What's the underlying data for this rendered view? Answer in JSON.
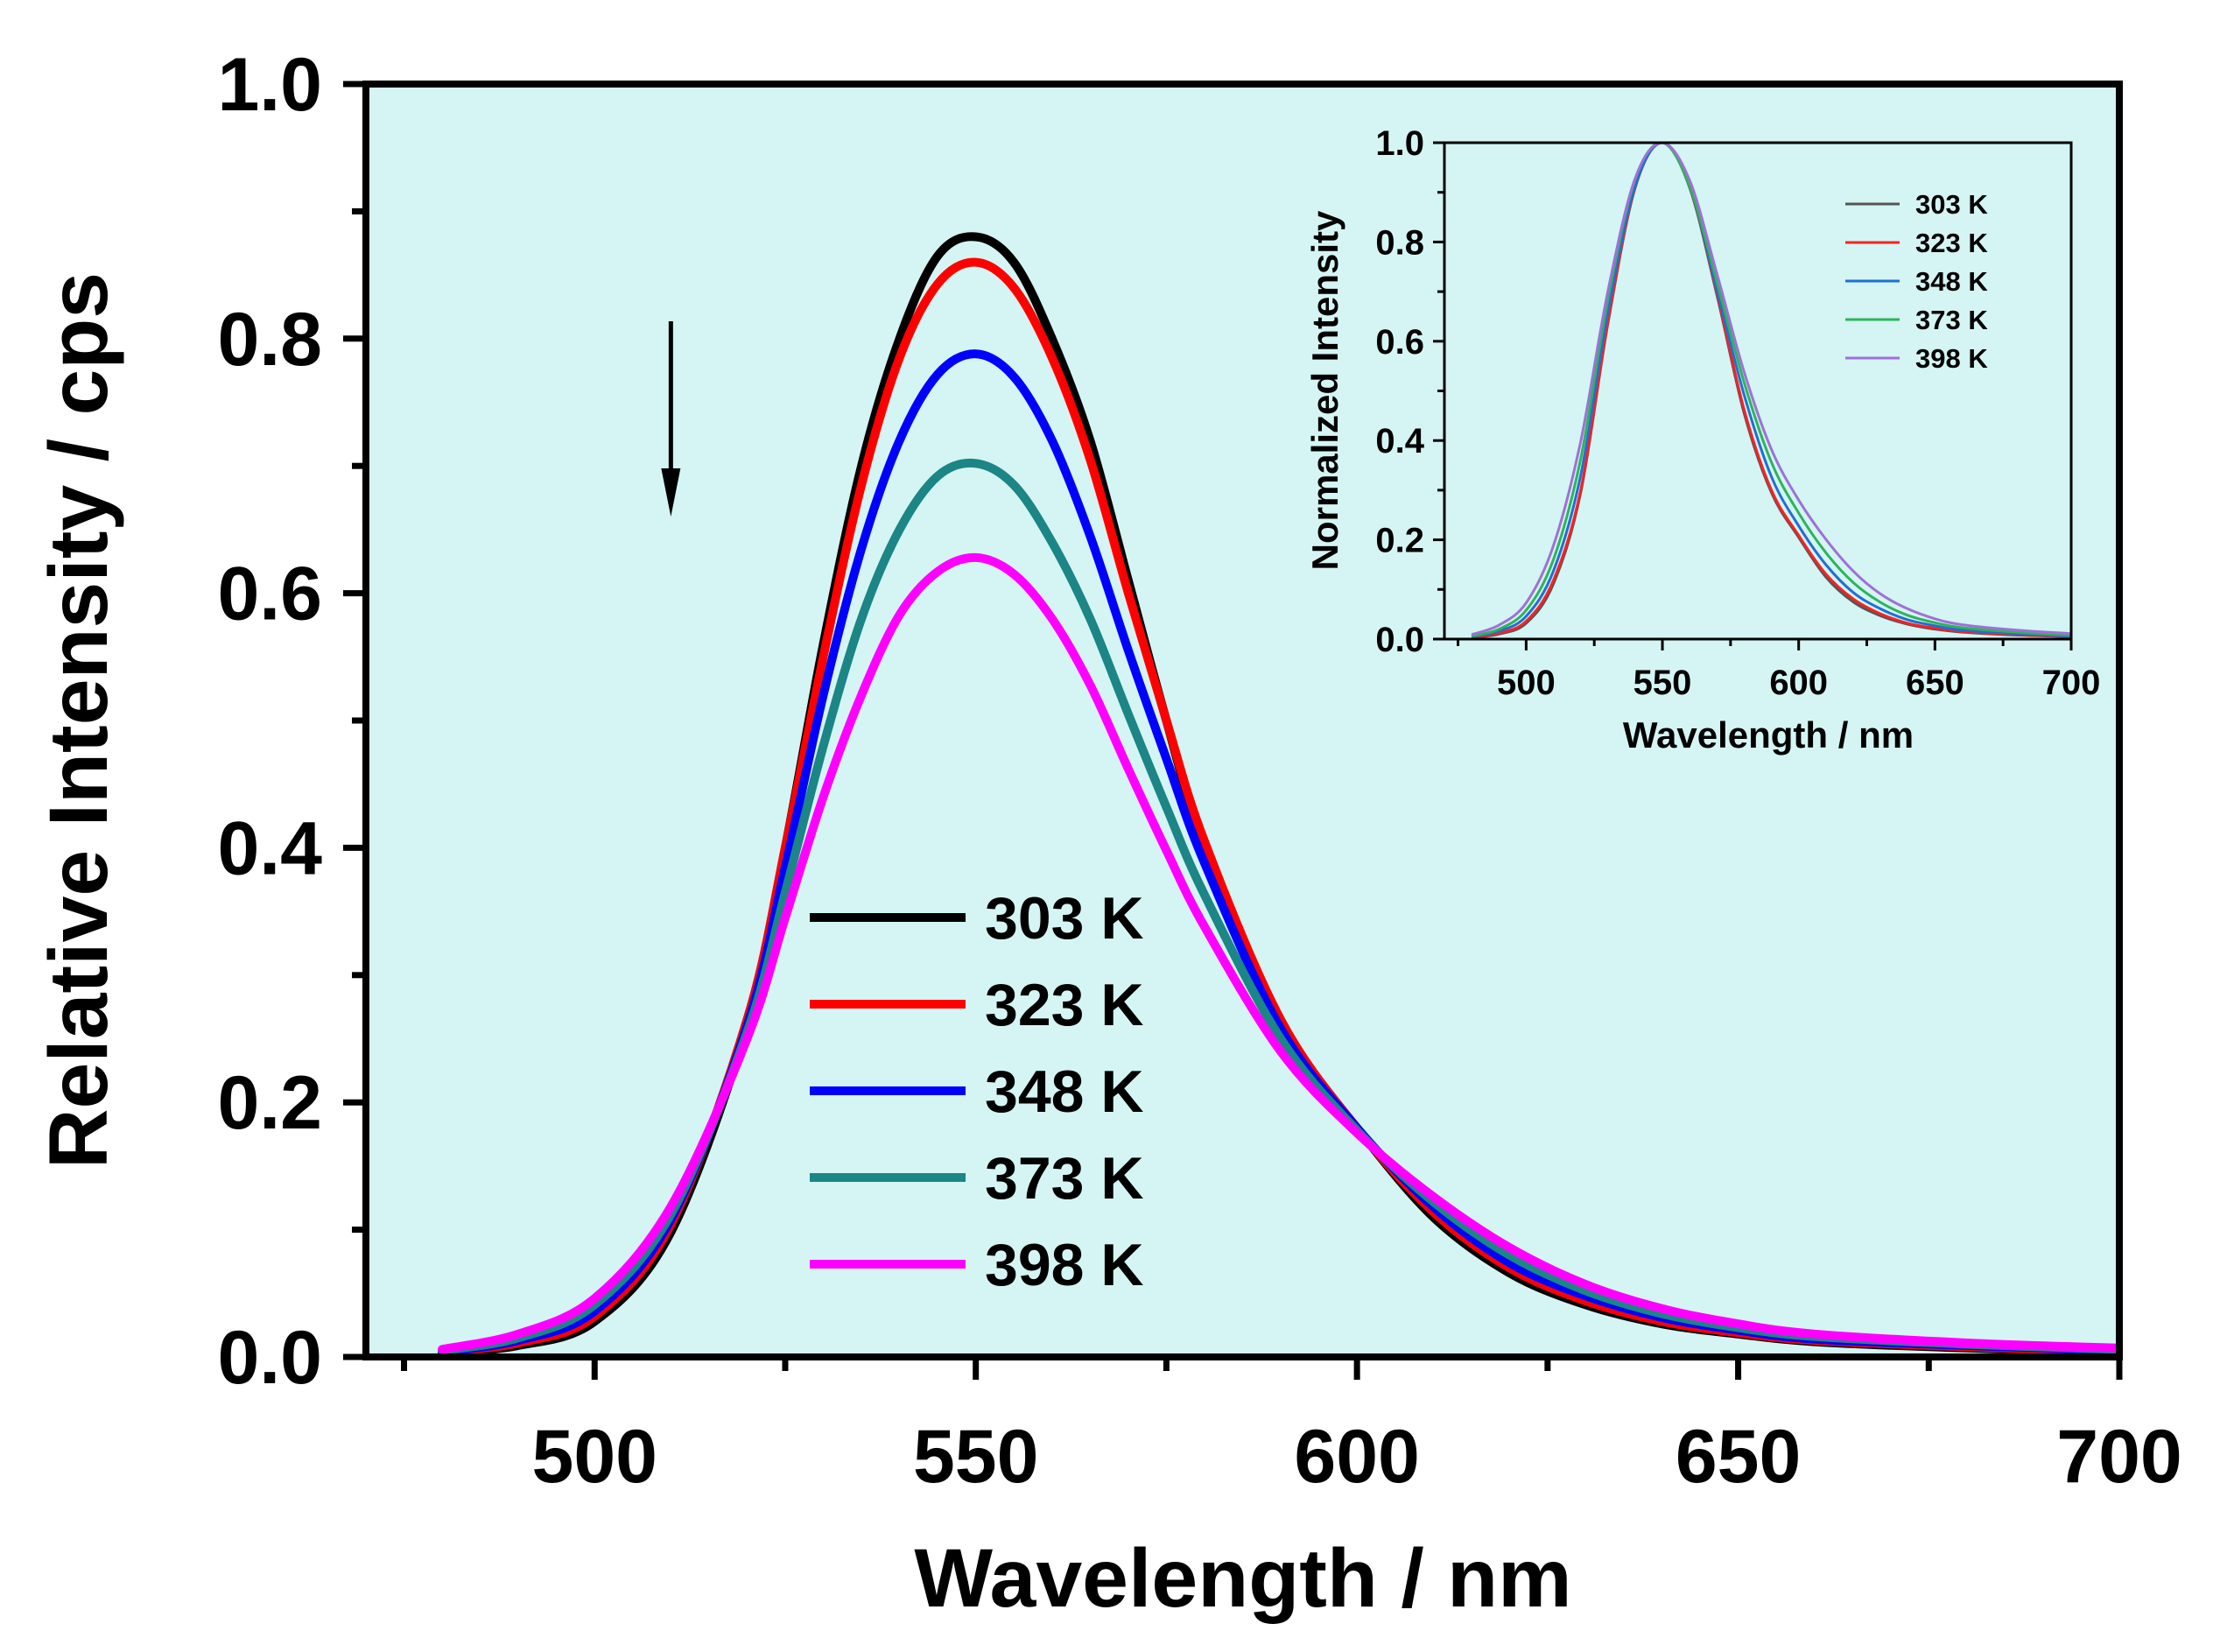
{
  "chart_data": [
    {
      "id": "main",
      "type": "line",
      "title": "",
      "xlabel": "Wavelength / nm",
      "ylabel": "Relative Intensity / cps",
      "xlim": [
        470,
        700
      ],
      "ylim": [
        0.0,
        1.0
      ],
      "xticks": [
        500,
        550,
        600,
        650,
        700
      ],
      "yticks": [
        "0.0",
        "0.2",
        "0.4",
        "0.6",
        "0.8",
        "1.0"
      ],
      "background": "#d4f5f3",
      "legend_position": "center",
      "annotation": "downward arrow near 510 nm indicating intensity decreases as temperature increases",
      "series": [
        {
          "name": "303 K",
          "color": "#000000",
          "x": [
            480,
            490,
            500,
            510,
            520,
            525,
            530,
            535,
            540,
            545,
            550,
            555,
            560,
            565,
            570,
            575,
            580,
            590,
            600,
            610,
            620,
            630,
            640,
            650,
            660,
            680,
            700
          ],
          "y": [
            0.003,
            0.009,
            0.028,
            0.098,
            0.26,
            0.4,
            0.56,
            0.7,
            0.8,
            0.865,
            0.88,
            0.86,
            0.8,
            0.72,
            0.61,
            0.5,
            0.4,
            0.26,
            0.18,
            0.11,
            0.066,
            0.041,
            0.026,
            0.018,
            0.012,
            0.007,
            0.004
          ]
        },
        {
          "name": "323 K",
          "color": "#ff0000",
          "x": [
            480,
            490,
            500,
            510,
            520,
            525,
            530,
            535,
            540,
            545,
            550,
            555,
            560,
            565,
            570,
            575,
            580,
            590,
            600,
            610,
            620,
            630,
            640,
            650,
            660,
            680,
            700
          ],
          "y": [
            0.004,
            0.011,
            0.032,
            0.104,
            0.265,
            0.4,
            0.55,
            0.685,
            0.785,
            0.843,
            0.86,
            0.84,
            0.785,
            0.705,
            0.6,
            0.5,
            0.405,
            0.265,
            0.18,
            0.114,
            0.07,
            0.044,
            0.028,
            0.019,
            0.013,
            0.008,
            0.004
          ]
        },
        {
          "name": "348 K",
          "color": "#0000ff",
          "x": [
            480,
            490,
            500,
            510,
            520,
            525,
            530,
            535,
            540,
            545,
            550,
            555,
            560,
            565,
            570,
            575,
            580,
            590,
            600,
            610,
            620,
            630,
            640,
            650,
            660,
            680,
            700
          ],
          "y": [
            0.004,
            0.013,
            0.036,
            0.108,
            0.26,
            0.385,
            0.52,
            0.635,
            0.72,
            0.772,
            0.788,
            0.77,
            0.72,
            0.645,
            0.555,
            0.47,
            0.388,
            0.258,
            0.18,
            0.118,
            0.074,
            0.048,
            0.031,
            0.021,
            0.014,
            0.009,
            0.005
          ]
        },
        {
          "name": "373 K",
          "color": "#1c8585",
          "x": [
            480,
            490,
            500,
            510,
            520,
            525,
            530,
            535,
            540,
            545,
            550,
            555,
            560,
            565,
            570,
            575,
            580,
            590,
            600,
            610,
            620,
            630,
            640,
            650,
            660,
            680,
            700
          ],
          "y": [
            0.005,
            0.015,
            0.041,
            0.112,
            0.255,
            0.365,
            0.48,
            0.58,
            0.65,
            0.692,
            0.702,
            0.685,
            0.64,
            0.58,
            0.505,
            0.432,
            0.363,
            0.25,
            0.178,
            0.122,
            0.08,
            0.052,
            0.034,
            0.023,
            0.016,
            0.01,
            0.006
          ]
        },
        {
          "name": "398 K",
          "color": "#ff00ff",
          "x": [
            480,
            490,
            500,
            510,
            520,
            525,
            530,
            535,
            540,
            545,
            550,
            555,
            560,
            565,
            570,
            575,
            580,
            590,
            600,
            610,
            620,
            630,
            640,
            650,
            660,
            680,
            700
          ],
          "y": [
            0.006,
            0.018,
            0.046,
            0.118,
            0.25,
            0.345,
            0.44,
            0.52,
            0.583,
            0.617,
            0.628,
            0.615,
            0.58,
            0.528,
            0.462,
            0.398,
            0.338,
            0.24,
            0.176,
            0.126,
            0.086,
            0.057,
            0.038,
            0.026,
            0.018,
            0.011,
            0.007
          ]
        }
      ]
    },
    {
      "id": "inset",
      "type": "line",
      "title": "",
      "xlabel": "Wavelength / nm",
      "ylabel": "Normalized Intensity",
      "xlim": [
        470,
        700
      ],
      "ylim": [
        0.0,
        1.0
      ],
      "xticks": [
        500,
        550,
        600,
        650,
        700
      ],
      "yticks": [
        "0.0",
        "0.2",
        "0.4",
        "0.6",
        "0.8",
        "1.0"
      ],
      "background": "#d4f5f3",
      "legend_position": "top-right",
      "series": [
        {
          "name": "303 K",
          "color": "#555555",
          "x": [
            480,
            490,
            500,
            510,
            520,
            530,
            540,
            550,
            560,
            570,
            580,
            590,
            600,
            610,
            620,
            630,
            640,
            650,
            660,
            680,
            700
          ],
          "y": [
            0.003,
            0.01,
            0.032,
            0.111,
            0.295,
            0.636,
            0.909,
            1.0,
            0.909,
            0.693,
            0.455,
            0.295,
            0.205,
            0.125,
            0.075,
            0.047,
            0.03,
            0.02,
            0.014,
            0.008,
            0.005
          ]
        },
        {
          "name": "323 K",
          "color": "#ff2020",
          "x": [
            480,
            490,
            500,
            510,
            520,
            530,
            540,
            550,
            560,
            570,
            580,
            590,
            600,
            610,
            620,
            630,
            640,
            650,
            660,
            680,
            700
          ],
          "y": [
            0.004,
            0.012,
            0.036,
            0.118,
            0.3,
            0.64,
            0.913,
            1.0,
            0.913,
            0.698,
            0.462,
            0.3,
            0.209,
            0.131,
            0.081,
            0.051,
            0.032,
            0.022,
            0.015,
            0.009,
            0.005
          ]
        },
        {
          "name": "348 K",
          "color": "#1f6fd6",
          "x": [
            480,
            490,
            500,
            510,
            520,
            530,
            540,
            550,
            560,
            570,
            580,
            590,
            600,
            610,
            620,
            630,
            640,
            650,
            660,
            680,
            700
          ],
          "y": [
            0.005,
            0.016,
            0.046,
            0.137,
            0.33,
            0.66,
            0.914,
            1.0,
            0.914,
            0.704,
            0.492,
            0.327,
            0.228,
            0.15,
            0.094,
            0.061,
            0.039,
            0.027,
            0.018,
            0.011,
            0.006
          ]
        },
        {
          "name": "373 K",
          "color": "#2fb35a",
          "x": [
            480,
            490,
            500,
            510,
            520,
            530,
            540,
            550,
            560,
            570,
            580,
            590,
            600,
            610,
            620,
            630,
            640,
            650,
            660,
            680,
            700
          ],
          "y": [
            0.006,
            0.02,
            0.058,
            0.16,
            0.363,
            0.684,
            0.926,
            1.0,
            0.912,
            0.719,
            0.517,
            0.356,
            0.254,
            0.174,
            0.114,
            0.074,
            0.048,
            0.033,
            0.023,
            0.014,
            0.008
          ]
        },
        {
          "name": "398 K",
          "color": "#a070d8",
          "x": [
            480,
            490,
            500,
            510,
            520,
            530,
            540,
            550,
            560,
            570,
            580,
            590,
            600,
            610,
            620,
            630,
            640,
            650,
            660,
            680,
            700
          ],
          "y": [
            0.009,
            0.028,
            0.073,
            0.188,
            0.398,
            0.701,
            0.928,
            1.0,
            0.924,
            0.736,
            0.538,
            0.382,
            0.28,
            0.201,
            0.137,
            0.091,
            0.061,
            0.041,
            0.029,
            0.018,
            0.011
          ]
        }
      ]
    }
  ]
}
